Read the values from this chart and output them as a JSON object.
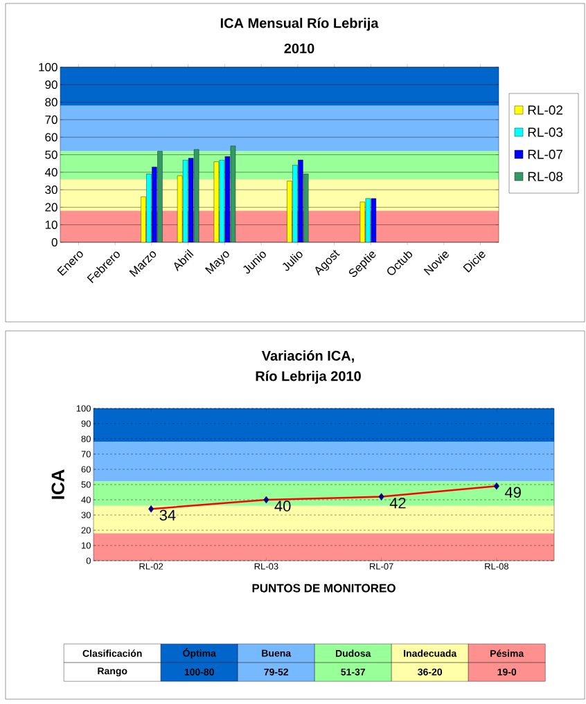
{
  "chart_data": [
    {
      "type": "bar",
      "title": "ICA Mensual Río Lebrija",
      "subtitle": "2010",
      "categories": [
        "Enero",
        "Febrero",
        "Marzo",
        "Abril",
        "Mayo",
        "Junio",
        "Julio",
        "Agost",
        "Septie",
        "Octub",
        "Novie",
        "Dicie"
      ],
      "series": [
        {
          "name": "RL-02",
          "color": "#ffff00",
          "values": [
            null,
            null,
            26,
            38,
            46,
            null,
            35,
            null,
            23,
            null,
            null,
            null
          ]
        },
        {
          "name": "RL-03",
          "color": "#00ffff",
          "values": [
            null,
            null,
            39,
            47,
            47,
            null,
            44,
            null,
            25,
            null,
            null,
            null
          ]
        },
        {
          "name": "RL-07",
          "color": "#0000ff",
          "values": [
            null,
            null,
            43,
            48,
            49,
            null,
            47,
            null,
            25,
            null,
            null,
            null
          ]
        },
        {
          "name": "RL-08",
          "color": "#339966",
          "values": [
            null,
            null,
            52,
            53,
            55,
            null,
            39,
            null,
            null,
            null,
            null,
            null
          ]
        }
      ],
      "ylim": [
        0,
        100
      ],
      "yticks": [
        0,
        10,
        20,
        30,
        40,
        50,
        60,
        70,
        80,
        90,
        100
      ],
      "grid": "y",
      "legend": "right",
      "bands": [
        {
          "axis": "y",
          "from": 78,
          "to": 100,
          "color": "#0066cc"
        },
        {
          "axis": "y",
          "from": 52,
          "to": 78,
          "color": "#77b9ff"
        },
        {
          "axis": "y",
          "from": 36,
          "to": 52,
          "color": "#99ff99"
        },
        {
          "axis": "y",
          "from": 18,
          "to": 36,
          "color": "#ffffaa"
        },
        {
          "axis": "y",
          "from": 0,
          "to": 18,
          "color": "#ff9090"
        }
      ]
    },
    {
      "type": "line",
      "title": "Variación ICA,",
      "subtitle": "Río Lebrija 2010",
      "xlabel": "PUNTOS DE MONITOREO",
      "ylabel": "ICA",
      "categories": [
        "RL-02",
        "RL-03",
        "RL-07",
        "RL-08"
      ],
      "series": [
        {
          "color": "#ff0000",
          "values": [
            34,
            40,
            42,
            49
          ]
        }
      ],
      "ylim": [
        0,
        100
      ],
      "yticks": [
        0,
        10,
        20,
        30,
        40,
        50,
        60,
        70,
        80,
        90,
        100
      ],
      "grid": "y",
      "legend": false,
      "marker": "diamond",
      "data_labels": true,
      "bands": [
        {
          "axis": "y",
          "from": 78,
          "to": 100,
          "color": "#0066cc"
        },
        {
          "axis": "y",
          "from": 52,
          "to": 78,
          "color": "#77b9ff"
        },
        {
          "axis": "y",
          "from": 36,
          "to": 52,
          "color": "#99ff99"
        },
        {
          "axis": "y",
          "from": 18,
          "to": 36,
          "color": "#ffffaa"
        },
        {
          "axis": "y",
          "from": 0,
          "to": 18,
          "color": "#ff9090"
        }
      ],
      "annotations": [
        "Clasificación",
        "Óptima",
        "Buena",
        "Dudosa",
        "Inadecuada",
        "Pésima",
        "Rango",
        "100-80",
        "79-52",
        "51-37",
        "36-20",
        "19-0"
      ]
    }
  ]
}
